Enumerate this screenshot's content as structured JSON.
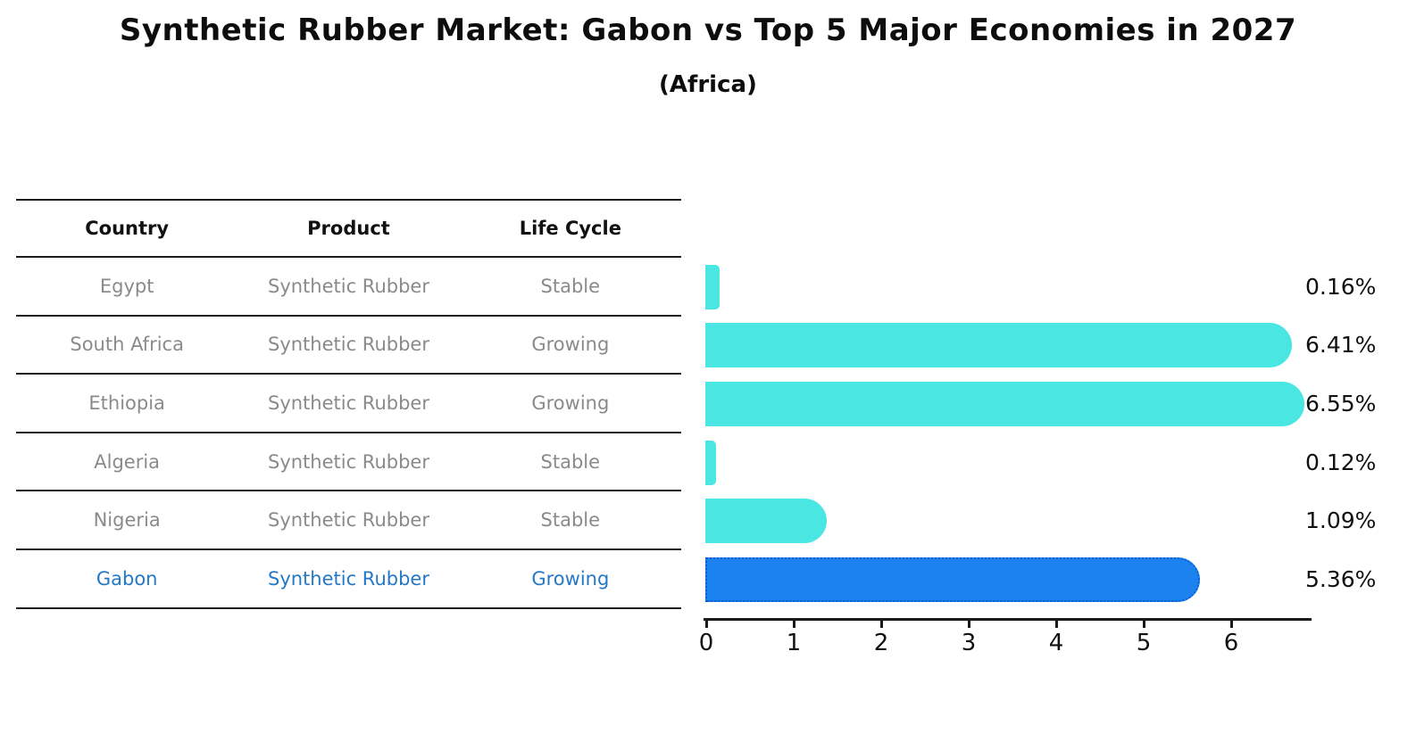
{
  "title": "Synthetic Rubber Market: Gabon vs Top 5 Major Economies in 2027",
  "subtitle": "(Africa)",
  "table": {
    "columns": [
      "Country",
      "Product",
      "Life Cycle"
    ],
    "rows": [
      {
        "country": "Egypt",
        "product": "Synthetic Rubber",
        "life_cycle": "Stable",
        "highlight": false
      },
      {
        "country": "South Africa",
        "product": "Synthetic Rubber",
        "life_cycle": "Growing",
        "highlight": false
      },
      {
        "country": "Ethiopia",
        "product": "Synthetic Rubber",
        "life_cycle": "Growing",
        "highlight": false
      },
      {
        "country": "Algeria",
        "product": "Synthetic Rubber",
        "life_cycle": "Stable",
        "highlight": false
      },
      {
        "country": "Nigeria",
        "product": "Synthetic Rubber",
        "life_cycle": "Stable",
        "highlight": false
      },
      {
        "country": "Gabon",
        "product": "Synthetic Rubber",
        "life_cycle": "Growing",
        "highlight": true
      }
    ]
  },
  "chart_data": {
    "type": "bar",
    "orientation": "horizontal",
    "title": "Synthetic Rubber Market: Gabon vs Top 5 Major Economies in 2027",
    "subtitle": "(Africa)",
    "categories": [
      "Egypt",
      "South Africa",
      "Ethiopia",
      "Algeria",
      "Nigeria",
      "Gabon"
    ],
    "values": [
      0.16,
      6.41,
      6.55,
      0.12,
      1.09,
      5.36
    ],
    "value_labels": [
      "0.16%",
      "6.41%",
      "6.55%",
      "0.12%",
      "1.09%",
      "5.36%"
    ],
    "xticks": [
      "0",
      "1",
      "2",
      "3",
      "4",
      "5",
      "6"
    ],
    "xlim": [
      0,
      6.9
    ],
    "grid": false,
    "legend": null,
    "highlight_category": "Gabon",
    "colors": {
      "bar": "#4ae6e1",
      "highlight_bar": "#1b82f0",
      "highlight_bar_border": "#0a5fd0",
      "highlight_text": "#2478c8",
      "row_text": "#8a8a8a",
      "axis_text": "#111111"
    }
  }
}
